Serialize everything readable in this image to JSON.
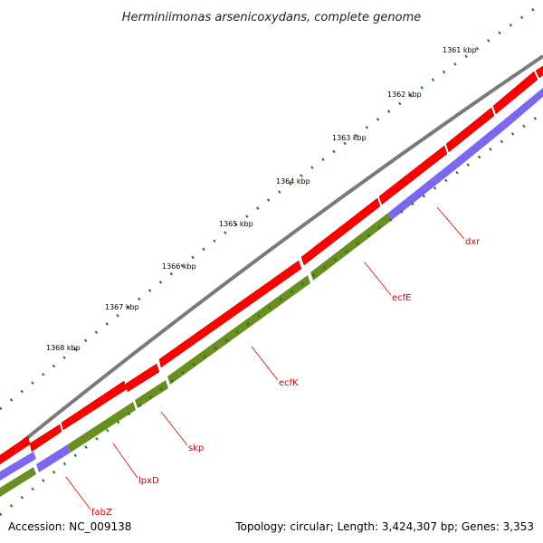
{
  "title": "Herminiimonas arsenicoxydans, complete genome",
  "footer": {
    "accession": "Accession: NC_009138",
    "summary": "Topology: circular; Length: 3,424,307 bp; Genes: 3,353"
  },
  "ticks": [
    "1361 kbp",
    "1362 kbp",
    "1363 kbp",
    "1364 kbp",
    "1365 kbp",
    "1366 kbp",
    "1367 kbp",
    "1368 kbp"
  ],
  "genes": [
    {
      "name": "dxr"
    },
    {
      "name": "ecfE"
    },
    {
      "name": "ecfK"
    },
    {
      "name": "skp"
    },
    {
      "name": "lpxD"
    },
    {
      "name": "fabZ"
    }
  ],
  "colors": {
    "backbone": "#7a7a7a",
    "cds": "#ff0000",
    "cog_green": "#6b8e23",
    "cog_blue": "#7b68ee",
    "tick": "#1a7a1a",
    "label": "#cc0000"
  }
}
